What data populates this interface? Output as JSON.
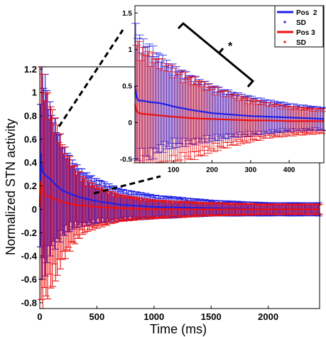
{
  "chart_data": [
    {
      "type": "line",
      "xlabel": "Time (ms)",
      "ylabel": "Normalized STN activity",
      "xlim": [
        0,
        2450
      ],
      "ylim": [
        -0.85,
        1.22
      ],
      "x_ticks": [
        0,
        500,
        1000,
        1500,
        2000
      ],
      "y_ticks": [
        -0.8,
        -0.6,
        -0.4,
        -0.2,
        0,
        0.2,
        0.4,
        0.6,
        0.8,
        1,
        1.2
      ],
      "x_tick_labels": [
        "0",
        "500",
        "1000",
        "1500",
        "2000"
      ],
      "y_tick_labels": [
        "-0.8",
        "-0.6",
        "-0.4",
        "-0.2",
        "0",
        "0.2",
        "0.4",
        "0.6",
        "0.8",
        "1",
        "1.2"
      ],
      "grid": false,
      "series": [
        {
          "name": "Pos 2",
          "color": "#1f1fe6",
          "x": [
            0,
            10,
            20,
            40,
            60,
            80,
            100,
            150,
            200,
            300,
            400,
            500,
            700,
            1000,
            1500,
            2000,
            2450
          ],
          "y": [
            0.02,
            0.5,
            0.33,
            0.3,
            0.28,
            0.27,
            0.25,
            0.2,
            0.16,
            0.12,
            0.09,
            0.07,
            0.04,
            0.02,
            0.01,
            0.0,
            0.0
          ],
          "sd": [
            0.1,
            0.9,
            0.85,
            0.8,
            0.7,
            0.6,
            0.55,
            0.45,
            0.35,
            0.25,
            0.2,
            0.17,
            0.12,
            0.09,
            0.06,
            0.05,
            0.05
          ]
        },
        {
          "name": "Pos 3",
          "color": "#ee1111",
          "x": [
            0,
            10,
            20,
            40,
            60,
            80,
            100,
            150,
            200,
            300,
            400,
            500,
            700,
            1000,
            1500,
            2000,
            2450
          ],
          "y": [
            0.02,
            0.25,
            0.15,
            0.13,
            0.12,
            0.11,
            0.1,
            0.08,
            0.06,
            0.04,
            0.03,
            0.02,
            0.01,
            0.0,
            0.0,
            0.0,
            0.0
          ],
          "sd": [
            0.1,
            1.0,
            0.9,
            0.85,
            0.8,
            0.75,
            0.7,
            0.6,
            0.45,
            0.3,
            0.2,
            0.16,
            0.1,
            0.07,
            0.05,
            0.04,
            0.04
          ]
        }
      ]
    },
    {
      "type": "line",
      "inset": true,
      "xlim": [
        0,
        490
      ],
      "ylim": [
        -0.55,
        1.6
      ],
      "x_ticks": [
        100,
        200,
        300,
        400
      ],
      "y_ticks": [
        -0.5,
        0,
        0.5,
        1,
        1.5
      ],
      "x_tick_labels": [
        "100",
        "200",
        "300",
        "400"
      ],
      "y_tick_labels": [
        "-0.5",
        "0",
        "0.5",
        "1",
        "1.5"
      ],
      "legend": {
        "location": "top-right",
        "entries": [
          {
            "label": "Pos  2",
            "style": "line",
            "color": "#1f1fe6"
          },
          {
            "label": "SD",
            "style": "dot",
            "color": "#1f1fe6"
          },
          {
            "label": "Pos 3",
            "style": "line",
            "color": "#ee1111"
          },
          {
            "label": "SD",
            "style": "dot",
            "color": "#ee1111"
          }
        ]
      },
      "annotation": "*",
      "series": [
        {
          "name": "Pos  2",
          "color": "#1f1fe6",
          "x": [
            0,
            5,
            10,
            20,
            40,
            60,
            80,
            100,
            150,
            200,
            250,
            300,
            350,
            400,
            450,
            490
          ],
          "y": [
            0.5,
            0.33,
            0.3,
            0.3,
            0.28,
            0.27,
            0.25,
            0.22,
            0.17,
            0.13,
            0.11,
            0.09,
            0.08,
            0.07,
            0.06,
            0.05
          ],
          "sd": [
            0.9,
            0.85,
            0.8,
            0.75,
            0.7,
            0.62,
            0.55,
            0.5,
            0.42,
            0.34,
            0.28,
            0.24,
            0.2,
            0.17,
            0.15,
            0.14
          ]
        },
        {
          "name": "Pos 3",
          "color": "#ee1111",
          "x": [
            0,
            5,
            10,
            20,
            40,
            60,
            80,
            100,
            150,
            200,
            250,
            300,
            350,
            400,
            450,
            490
          ],
          "y": [
            0.25,
            0.15,
            0.13,
            0.12,
            0.11,
            0.1,
            0.09,
            0.08,
            0.06,
            0.05,
            0.04,
            0.03,
            0.03,
            0.02,
            0.02,
            0.02
          ],
          "sd": [
            1.0,
            0.9,
            0.85,
            0.8,
            0.75,
            0.7,
            0.65,
            0.6,
            0.5,
            0.4,
            0.32,
            0.26,
            0.21,
            0.18,
            0.16,
            0.15
          ]
        }
      ]
    }
  ]
}
